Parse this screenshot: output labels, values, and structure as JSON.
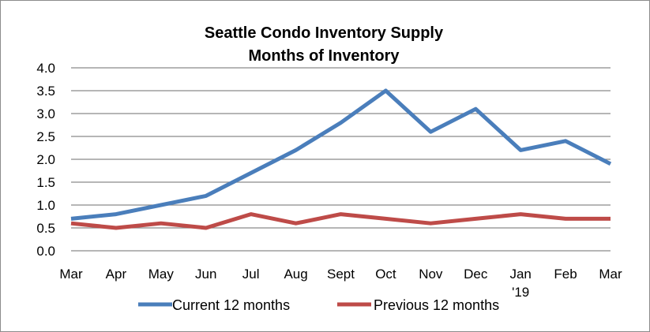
{
  "chart_data": {
    "type": "line",
    "title": "Seattle Condo Inventory Supply",
    "subtitle": "Months of Inventory",
    "x": [
      "Mar",
      "Apr",
      "May",
      "Jun",
      "Jul",
      "Aug",
      "Sept",
      "Oct",
      "Nov",
      "Dec",
      "Jan",
      "Feb",
      "Mar"
    ],
    "x_sublabels": [
      "",
      "",
      "",
      "",
      "",
      "",
      "",
      "",
      "",
      "",
      "'19",
      "",
      ""
    ],
    "ylim": [
      0,
      4.0
    ],
    "yticks": [
      "0.0",
      "0.5",
      "1.0",
      "1.5",
      "2.0",
      "2.5",
      "3.0",
      "3.5",
      "4.0"
    ],
    "grid": true,
    "legend_position": "bottom",
    "series": [
      {
        "name": "Current 12 months",
        "color": "#4a7ebb",
        "values": [
          0.7,
          0.8,
          1.0,
          1.2,
          1.7,
          2.2,
          2.8,
          3.5,
          2.6,
          3.1,
          2.2,
          2.4,
          1.9
        ]
      },
      {
        "name": "Previous 12 months",
        "color": "#be4b48",
        "values": [
          0.6,
          0.5,
          0.6,
          0.5,
          0.8,
          0.6,
          0.8,
          0.7,
          0.6,
          0.7,
          0.8,
          0.7,
          0.7
        ]
      }
    ]
  }
}
